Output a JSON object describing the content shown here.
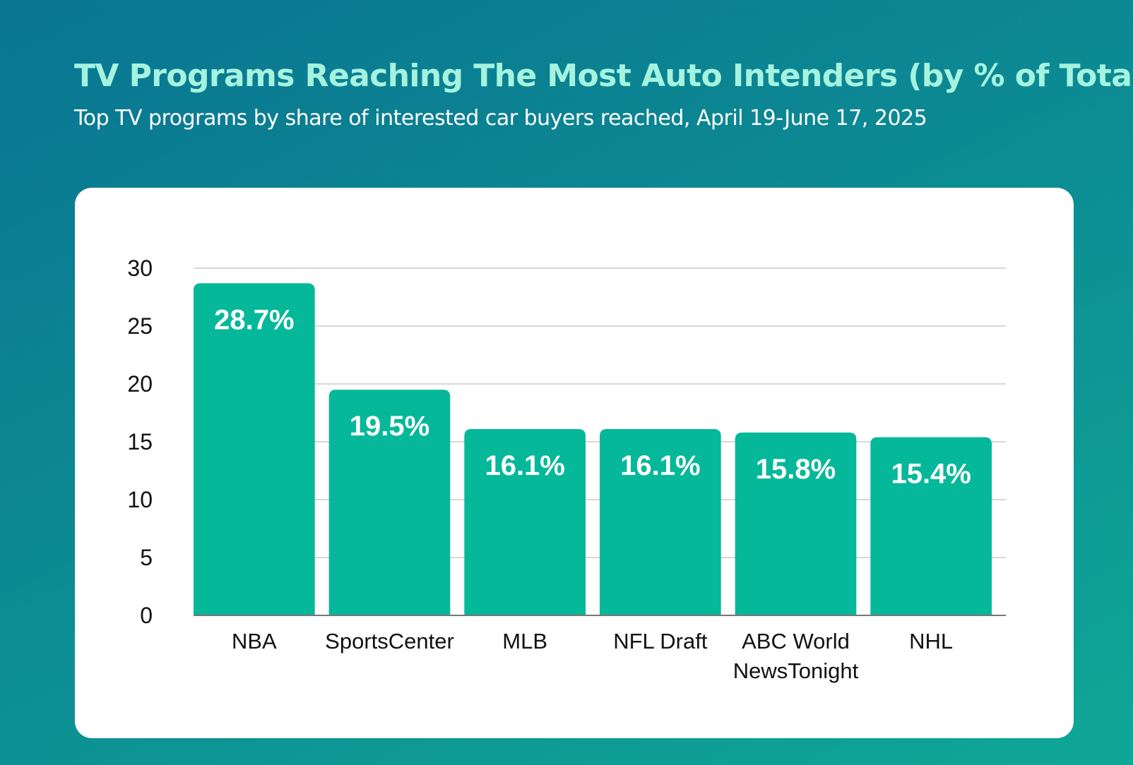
{
  "header": {
    "title": "TV Programs Reaching The Most Auto Intenders (by % of Total)",
    "subtitle": "Top TV programs by share of interested car buyers reached, April 19-June 17, 2025"
  },
  "colors": {
    "background_start": "#0a7591",
    "background_end": "#0fa796",
    "title": "#a5f3df",
    "bar": "#05b89a",
    "card": "#ffffff",
    "grid": "#cccccc"
  },
  "chart_data": {
    "type": "bar",
    "categories": [
      "NBA",
      "SportsCenter",
      "MLB",
      "NFL Draft",
      "ABC World NewsTonight",
      "NHL"
    ],
    "category_lines": [
      [
        "NBA"
      ],
      [
        "SportsCenter"
      ],
      [
        "MLB"
      ],
      [
        "NFL Draft"
      ],
      [
        "ABC World",
        "NewsTonight"
      ],
      [
        "NHL"
      ]
    ],
    "values": [
      28.7,
      19.5,
      16.1,
      16.1,
      15.8,
      15.4
    ],
    "data_labels": [
      "28.7%",
      "19.5%",
      "16.1%",
      "16.1%",
      "15.8%",
      "15.4%"
    ],
    "yticks": [
      0,
      5,
      10,
      15,
      20,
      25,
      30
    ],
    "ylim": [
      0,
      30
    ],
    "grid": true,
    "legend": "none",
    "xlabel": "",
    "ylabel": ""
  }
}
